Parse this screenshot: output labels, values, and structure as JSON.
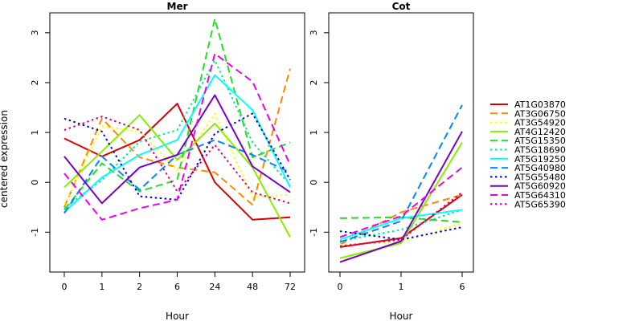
{
  "chart_data": {
    "type": "line",
    "ylabel": "centered expression",
    "ylim": [
      -1.8,
      3.4
    ],
    "yticks": [
      -1,
      0,
      1,
      2,
      3
    ],
    "grid": false,
    "legend_position": "right",
    "series_styles": [
      {
        "name": "AT1G03870",
        "color": "#dd0000",
        "dash": "solid"
      },
      {
        "name": "AT3G06750",
        "color": "#ff8800",
        "dash": "dashed"
      },
      {
        "name": "AT3G54920",
        "color": "#ffff00",
        "dash": "dotted"
      },
      {
        "name": "AT4G12420",
        "color": "#88ee00",
        "dash": "solid"
      },
      {
        "name": "AT5G15350",
        "color": "#22dd22",
        "dash": "dashed"
      },
      {
        "name": "AT5G18690",
        "color": "#00ee88",
        "dash": "dotted"
      },
      {
        "name": "AT5G19250",
        "color": "#00ffff",
        "dash": "solid"
      },
      {
        "name": "AT5G40980",
        "color": "#0088ff",
        "dash": "dashed"
      },
      {
        "name": "AT5G55480",
        "color": "#0000dd",
        "dash": "dotted"
      },
      {
        "name": "AT5G60920",
        "color": "#7700cc",
        "dash": "solid"
      },
      {
        "name": "AT5G64310",
        "color": "#ee00ee",
        "dash": "dashed"
      },
      {
        "name": "AT5G65390",
        "color": "#dd0077",
        "dash": "dotted"
      }
    ],
    "panels": [
      {
        "title": "Mer",
        "xlabel": "Hour",
        "categories": [
          "0",
          "1",
          "2",
          "6",
          "24",
          "48",
          "72"
        ],
        "series": [
          {
            "name": "AT1G03870",
            "values": [
              0.88,
              0.52,
              0.85,
              1.58,
              0.0,
              -0.75,
              -0.7
            ]
          },
          {
            "name": "AT3G06750",
            "values": [
              -0.5,
              1.28,
              0.5,
              0.3,
              0.2,
              -0.45,
              2.28
            ]
          },
          {
            "name": "AT3G54920",
            "values": [
              -0.45,
              1.12,
              1.02,
              0.25,
              1.38,
              -0.3,
              -0.25
            ]
          },
          {
            "name": "AT4G12420",
            "values": [
              -0.1,
              0.62,
              1.35,
              0.45,
              1.18,
              0.3,
              -1.1
            ]
          },
          {
            "name": "AT5G15350",
            "values": [
              -0.55,
              0.38,
              -0.18,
              0.05,
              3.28,
              0.5,
              0.8
            ]
          },
          {
            "name": "AT5G18690",
            "values": [
              -0.52,
              0.05,
              0.82,
              1.05,
              2.45,
              0.8,
              -0.05
            ]
          },
          {
            "name": "AT5G19250",
            "values": [
              -0.6,
              0.1,
              0.55,
              0.85,
              2.15,
              1.45,
              -0.1
            ]
          },
          {
            "name": "AT5G40980",
            "values": [
              -0.62,
              0.52,
              -0.15,
              0.55,
              0.85,
              0.55,
              0.2
            ]
          },
          {
            "name": "AT5G55480",
            "values": [
              1.28,
              1.02,
              -0.28,
              -0.35,
              0.98,
              1.38,
              0.05
            ]
          },
          {
            "name": "AT5G60920",
            "values": [
              0.52,
              -0.42,
              0.3,
              0.55,
              1.75,
              0.32,
              -0.2
            ]
          },
          {
            "name": "AT5G64310",
            "values": [
              0.18,
              -0.75,
              -0.52,
              -0.35,
              2.58,
              2.02,
              0.35
            ]
          },
          {
            "name": "AT5G65390",
            "values": [
              1.05,
              1.32,
              1.05,
              -0.18,
              0.75,
              -0.2,
              -0.42
            ]
          }
        ]
      },
      {
        "title": "Cot",
        "xlabel": "Hour",
        "categories": [
          "0",
          "1",
          "6"
        ],
        "series": [
          {
            "name": "AT1G03870",
            "values": [
              -1.3,
              -1.12,
              -0.25
            ]
          },
          {
            "name": "AT3G06750",
            "values": [
              -1.25,
              -0.6,
              -0.25
            ]
          },
          {
            "name": "AT3G54920",
            "values": [
              -1.25,
              -1.2,
              -0.82
            ]
          },
          {
            "name": "AT4G12420",
            "values": [
              -1.52,
              -1.22,
              0.8
            ]
          },
          {
            "name": "AT5G15350",
            "values": [
              -0.72,
              -0.7,
              -0.8
            ]
          },
          {
            "name": "AT5G18690",
            "values": [
              -1.18,
              -0.95,
              -0.55
            ]
          },
          {
            "name": "AT5G19250",
            "values": [
              -1.15,
              -0.72,
              -0.55
            ]
          },
          {
            "name": "AT5G40980",
            "values": [
              -1.2,
              -0.78,
              1.55
            ]
          },
          {
            "name": "AT5G55480",
            "values": [
              -0.98,
              -1.15,
              -0.9
            ]
          },
          {
            "name": "AT5G60920",
            "values": [
              -1.6,
              -1.18,
              1.02
            ]
          },
          {
            "name": "AT5G64310",
            "values": [
              -1.1,
              -0.68,
              0.3
            ]
          },
          {
            "name": "AT5G65390",
            "values": [
              -1.28,
              -1.15,
              -0.2
            ]
          }
        ]
      }
    ]
  }
}
